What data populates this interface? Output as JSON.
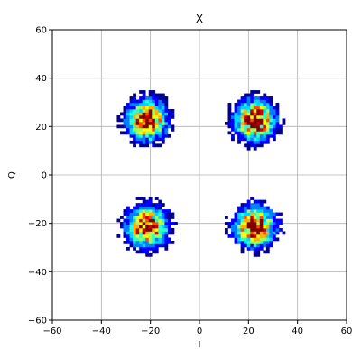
{
  "chart_data": {
    "type": "heatmap",
    "title": "X",
    "xlabel": "I",
    "ylabel": "Q",
    "xlim": [
      -60,
      60
    ],
    "ylim": [
      -60,
      60
    ],
    "xticks": [
      -60,
      -40,
      -20,
      0,
      20,
      40,
      60
    ],
    "yticks": [
      -60,
      -40,
      -20,
      0,
      20,
      40,
      60
    ],
    "grid": true,
    "bin_size": 1.3,
    "colormap": [
      "#00008b",
      "#0000ff",
      "#0080ff",
      "#00d5ff",
      "#2effc8",
      "#9bff5c",
      "#f0ff0f",
      "#ffb000",
      "#ff4a00",
      "#d00000",
      "#7f0000"
    ],
    "clusters": [
      {
        "center": [
          -22,
          22
        ],
        "spread": 4.8,
        "radius": 13
      },
      {
        "center": [
          22,
          22
        ],
        "spread": 4.8,
        "radius": 13
      },
      {
        "center": [
          -22,
          -22
        ],
        "spread": 4.8,
        "radius": 13
      },
      {
        "center": [
          22,
          -22
        ],
        "spread": 4.8,
        "radius": 13
      }
    ]
  }
}
